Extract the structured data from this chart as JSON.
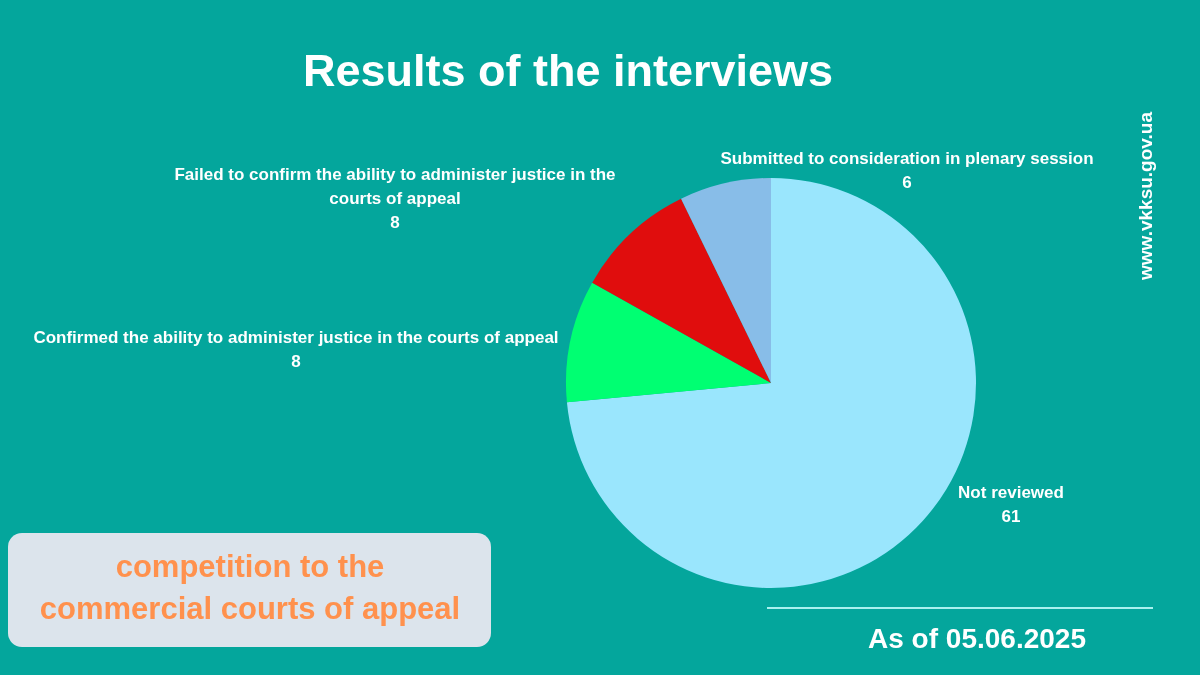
{
  "chart_data": {
    "type": "pie",
    "title": "Results of the interviews",
    "subtitle": "competition to the commercial courts of appeal",
    "categories": [
      "Not reviewed",
      "Confirmed the ability to administer justice in the courts of appeal",
      "Failed to confirm the ability to administer justice in the courts of appeal",
      "Submitted to consideration in plenary session"
    ],
    "values": [
      61,
      8,
      8,
      6
    ],
    "colors": [
      "#9ae6fd",
      "#00ff72",
      "#e00d0d",
      "#88bde8"
    ],
    "data_labels": true,
    "annotations": [
      "As of 05.06.2025",
      "www.vkksu.gov.ua"
    ]
  }
}
